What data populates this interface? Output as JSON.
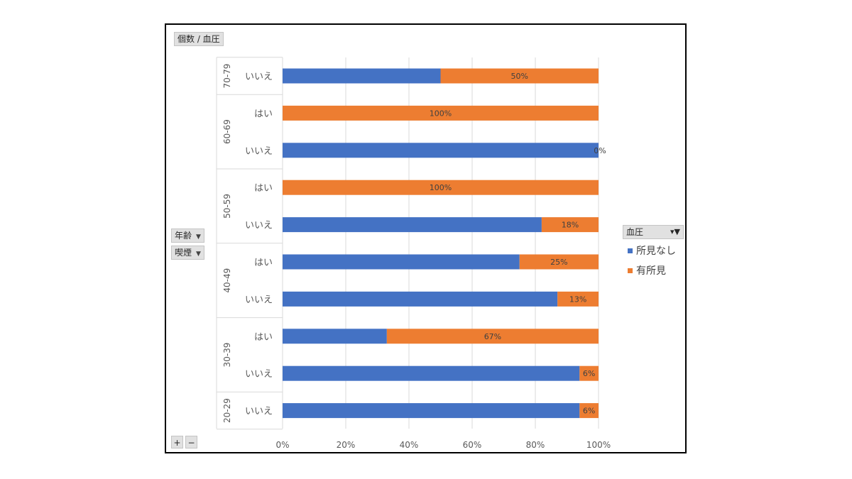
{
  "pivot": {
    "values_field": "個数 / 血圧",
    "row_fields": [
      "年齢",
      "喫煙"
    ],
    "legend_field": "血圧",
    "expand_collapse": [
      "+",
      "−"
    ]
  },
  "colors": {
    "no_finding": "#4472c4",
    "finding": "#ed7d31"
  },
  "chart_data": {
    "type": "bar",
    "orientation": "horizontal",
    "stacked": "percent",
    "title": "",
    "xlabel": "",
    "ylabel": "",
    "xlim": [
      0,
      1
    ],
    "xticks": [
      "0%",
      "20%",
      "40%",
      "60%",
      "80%",
      "100%"
    ],
    "grid": true,
    "legend_position": "right",
    "groups": [
      {
        "label": "70-79",
        "rows": [
          {
            "label": "いいえ",
            "values": [
              0.5,
              0.5
            ],
            "data_label": "50%"
          }
        ]
      },
      {
        "label": "60-69",
        "rows": [
          {
            "label": "はい",
            "values": [
              0,
              1.0
            ],
            "data_label": "100%"
          },
          {
            "label": "いいえ",
            "values": [
              1.0,
              0
            ],
            "data_label": "0%"
          }
        ]
      },
      {
        "label": "50-59",
        "rows": [
          {
            "label": "はい",
            "values": [
              0,
              1.0
            ],
            "data_label": "100%"
          },
          {
            "label": "いいえ",
            "values": [
              0.82,
              0.18
            ],
            "data_label": "18%"
          }
        ]
      },
      {
        "label": "40-49",
        "rows": [
          {
            "label": "はい",
            "values": [
              0.75,
              0.25
            ],
            "data_label": "25%"
          },
          {
            "label": "いいえ",
            "values": [
              0.87,
              0.13
            ],
            "data_label": "13%"
          }
        ]
      },
      {
        "label": "30-39",
        "rows": [
          {
            "label": "はい",
            "values": [
              0.33,
              0.67
            ],
            "data_label": "67%"
          },
          {
            "label": "いいえ",
            "values": [
              0.94,
              0.06
            ],
            "data_label": "6%"
          }
        ]
      },
      {
        "label": "20-29",
        "rows": [
          {
            "label": "いいえ",
            "values": [
              0.94,
              0.06
            ],
            "data_label": "6%"
          }
        ]
      }
    ],
    "series": [
      {
        "name": "所見なし",
        "color": "#4472c4"
      },
      {
        "name": "有所見",
        "color": "#ed7d31"
      }
    ]
  }
}
